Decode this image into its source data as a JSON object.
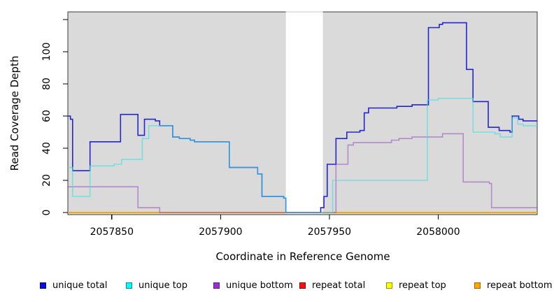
{
  "axes": {
    "x_label": "Coordinate in Reference Genome",
    "y_label": "Read Coverage Depth",
    "x_ticks": [
      {
        "value": 2057850,
        "label": "2057850"
      },
      {
        "value": 2057900,
        "label": "2057900"
      },
      {
        "value": 2057950,
        "label": "2057950"
      },
      {
        "value": 2058000,
        "label": "2058000"
      }
    ],
    "y_ticks": [
      {
        "value": 0,
        "label": "0"
      },
      {
        "value": 20,
        "label": "20"
      },
      {
        "value": 40,
        "label": "40"
      },
      {
        "value": 60,
        "label": "60"
      },
      {
        "value": 80,
        "label": "80"
      },
      {
        "value": 100,
        "label": "100"
      },
      {
        "value": 120,
        "label": ""
      }
    ]
  },
  "legend": [
    {
      "label": "unique total",
      "fill": "#0a0ae6",
      "border": "#000080"
    },
    {
      "label": "unique top",
      "fill": "#00ffff",
      "border": "#0a8a8a"
    },
    {
      "label": "unique bottom",
      "fill": "#9932cc",
      "border": "#5a1a8a"
    },
    {
      "label": "repeat total",
      "fill": "#ff1010",
      "border": "#900000"
    },
    {
      "label": "repeat top",
      "fill": "#ffff00",
      "border": "#909000"
    },
    {
      "label": "repeat bottom",
      "fill": "#ffa500",
      "border": "#b06000"
    }
  ],
  "chart_data": {
    "type": "step-line",
    "title": "",
    "xlabel": "Coordinate in Reference Genome",
    "ylabel": "Read Coverage Depth",
    "xlim": [
      2057829.8,
      2058045.5
    ],
    "ylim": [
      0,
      125
    ],
    "background": "#dadada",
    "grid": false,
    "legend_position": "bottom",
    "masked_region": {
      "x0": 2057930,
      "x1": 2057947,
      "color": "#ffffff"
    },
    "draw_order": [
      "repeat total",
      "repeat top",
      "repeat bottom",
      "unique total",
      "unique bottom",
      "unique top"
    ],
    "series": [
      {
        "name": "repeat total",
        "color": "#e02020",
        "points": [
          [
            2057829.8,
            0
          ]
        ]
      },
      {
        "name": "repeat top",
        "color": "#f0f000",
        "points": [
          [
            2057829.8,
            0
          ]
        ]
      },
      {
        "name": "repeat bottom",
        "color": "#ff9f00",
        "points": [
          [
            2057829.8,
            0
          ]
        ]
      },
      {
        "name": "unique total",
        "color": "#2525cd",
        "points": [
          [
            2057829.8,
            60
          ],
          [
            2057831,
            58
          ],
          [
            2057832,
            26
          ],
          [
            2057840,
            44
          ],
          [
            2057854,
            61
          ],
          [
            2057862,
            48
          ],
          [
            2057865,
            58
          ],
          [
            2057870,
            57
          ],
          [
            2057872,
            54
          ],
          [
            2057878,
            47
          ],
          [
            2057881,
            46
          ],
          [
            2057886,
            45
          ],
          [
            2057888,
            44
          ],
          [
            2057904,
            28
          ],
          [
            2057917,
            24
          ],
          [
            2057919,
            10
          ],
          [
            2057929,
            9
          ],
          [
            2057930,
            0
          ],
          [
            2057946,
            3
          ],
          [
            2057947.5,
            10
          ],
          [
            2057949,
            30
          ],
          [
            2057953,
            46
          ],
          [
            2057958,
            50
          ],
          [
            2057964,
            51
          ],
          [
            2057966,
            62
          ],
          [
            2057968,
            65
          ],
          [
            2057981,
            66
          ],
          [
            2057988,
            67
          ],
          [
            2057995.5,
            115
          ],
          [
            2058000.5,
            117
          ],
          [
            2058002,
            118
          ],
          [
            2058013,
            89
          ],
          [
            2058016,
            69
          ],
          [
            2058023,
            53
          ],
          [
            2058028,
            51
          ],
          [
            2058033,
            50
          ],
          [
            2058034,
            60
          ],
          [
            2058037,
            58
          ],
          [
            2058039,
            57
          ]
        ]
      },
      {
        "name": "unique bottom",
        "color": "rgba(140,60,190,0.5)",
        "points": [
          [
            2057829.8,
            16
          ],
          [
            2057862,
            3
          ],
          [
            2057872,
            0
          ],
          [
            2057953,
            30
          ],
          [
            2057958.5,
            42
          ],
          [
            2057961,
            43.5
          ],
          [
            2057978.5,
            45
          ],
          [
            2057982,
            46
          ],
          [
            2057988,
            47
          ],
          [
            2058002,
            49
          ],
          [
            2058011.5,
            19
          ],
          [
            2058023.5,
            18
          ],
          [
            2058024.5,
            3
          ]
        ]
      },
      {
        "name": "unique top",
        "color": "rgba(60,225,228,0.62)",
        "points": [
          [
            2057829.8,
            28
          ],
          [
            2057832,
            10
          ],
          [
            2057840,
            29
          ],
          [
            2057851,
            30
          ],
          [
            2057854.5,
            33
          ],
          [
            2057864,
            46
          ],
          [
            2057867,
            54
          ],
          [
            2057878,
            47
          ],
          [
            2057881,
            46
          ],
          [
            2057886,
            45
          ],
          [
            2057888,
            44
          ],
          [
            2057904,
            28
          ],
          [
            2057917,
            24
          ],
          [
            2057919,
            10
          ],
          [
            2057929,
            9
          ],
          [
            2057930,
            0
          ],
          [
            2057951.5,
            20
          ],
          [
            2057995,
            70
          ],
          [
            2058000,
            71
          ],
          [
            2058016,
            50
          ],
          [
            2058026,
            49
          ],
          [
            2058028.5,
            47
          ],
          [
            2058034,
            59
          ],
          [
            2058036.5,
            55
          ],
          [
            2058039,
            54
          ]
        ]
      }
    ]
  }
}
